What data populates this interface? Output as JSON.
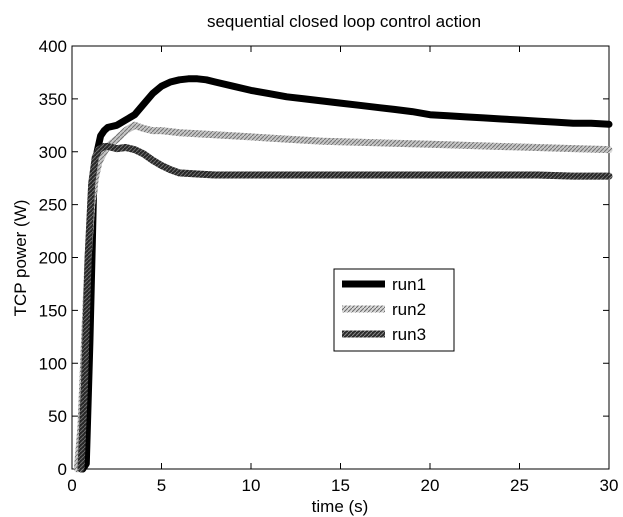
{
  "chart_data": {
    "type": "line",
    "title": "sequential closed loop control action",
    "xlabel": "time (s)",
    "ylabel": "TCP power (W)",
    "xlim": [
      0,
      30
    ],
    "ylim": [
      0,
      400
    ],
    "xticks": [
      0,
      5,
      10,
      15,
      20,
      25,
      30
    ],
    "yticks": [
      0,
      50,
      100,
      150,
      200,
      250,
      300,
      350,
      400
    ],
    "grid": false,
    "legend_position": "center-right",
    "series": [
      {
        "name": "run1",
        "color": "#000000",
        "style": "solid-thick",
        "x": [
          0.6,
          0.8,
          1.0,
          1.2,
          1.4,
          1.6,
          1.8,
          2.0,
          2.5,
          3.0,
          3.5,
          4.0,
          4.5,
          5.0,
          5.5,
          6.0,
          6.5,
          7.0,
          7.5,
          8.0,
          9.0,
          10.0,
          11.0,
          12.0,
          13.0,
          14.0,
          15.0,
          16.0,
          17.0,
          18.0,
          19.0,
          20.0,
          21.0,
          22.0,
          23.0,
          24.0,
          25.0,
          26.0,
          27.0,
          28.0,
          29.0,
          30.0
        ],
        "y": [
          0,
          5,
          120,
          260,
          300,
          315,
          320,
          323,
          325,
          330,
          335,
          345,
          355,
          362,
          366,
          368,
          369,
          369,
          368,
          366,
          362,
          358,
          355,
          352,
          350,
          348,
          346,
          344,
          342,
          340,
          338,
          335,
          334,
          333,
          332,
          331,
          330,
          329,
          328,
          327,
          327,
          326
        ]
      },
      {
        "name": "run2",
        "color": "#b4b4b4",
        "style": "hatched",
        "x": [
          0.3,
          0.5,
          0.7,
          0.9,
          1.1,
          1.3,
          1.5,
          1.8,
          2.0,
          2.5,
          3.0,
          3.5,
          4.0,
          4.5,
          5.0,
          6.0,
          7.0,
          8.0,
          10.0,
          12.0,
          14.0,
          16.0,
          18.0,
          20.0,
          22.0,
          24.0,
          26.0,
          28.0,
          30.0
        ],
        "y": [
          0,
          40,
          120,
          200,
          250,
          275,
          290,
          300,
          305,
          312,
          320,
          325,
          322,
          320,
          320,
          318,
          317,
          316,
          314,
          312,
          310,
          309,
          308,
          307,
          306,
          305,
          304,
          303,
          302
        ]
      },
      {
        "name": "run3",
        "color": "#404040",
        "style": "dark-hatched",
        "x": [
          0.5,
          0.7,
          0.9,
          1.1,
          1.3,
          1.5,
          1.8,
          2.0,
          2.5,
          3.0,
          3.5,
          4.0,
          4.5,
          5.0,
          5.5,
          6.0,
          7.0,
          8.0,
          10.0,
          12.0,
          14.0,
          16.0,
          18.0,
          20.0,
          22.0,
          24.0,
          26.0,
          28.0,
          30.0
        ],
        "y": [
          0,
          80,
          200,
          270,
          295,
          302,
          305,
          305,
          303,
          304,
          302,
          298,
          292,
          287,
          283,
          280,
          279,
          278,
          278,
          278,
          278,
          278,
          278,
          278,
          278,
          278,
          278,
          277,
          277
        ]
      }
    ]
  }
}
